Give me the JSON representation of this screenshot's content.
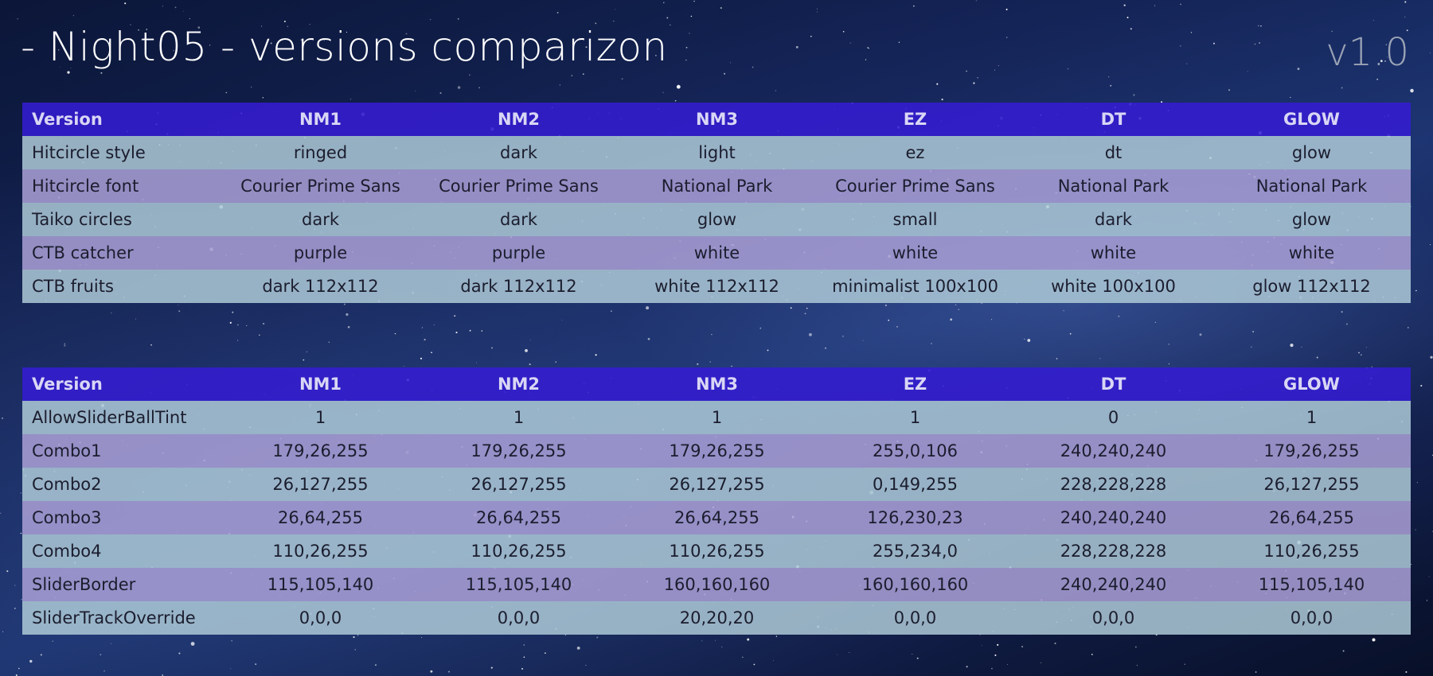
{
  "header": {
    "title": "- Night05 - versions comparizon",
    "version": "v1.0"
  },
  "tables": [
    {
      "columns": [
        "Version",
        "NM1",
        "NM2",
        "NM3",
        "EZ",
        "DT",
        "GLOW"
      ],
      "rows": [
        [
          "Hitcircle style",
          "ringed",
          "dark",
          "light",
          "ez",
          "dt",
          "glow"
        ],
        [
          "Hitcircle font",
          "Courier Prime Sans",
          "Courier Prime Sans",
          "National Park",
          "Courier Prime Sans",
          "National Park",
          "National Park"
        ],
        [
          "Taiko circles",
          "dark",
          "dark",
          "glow",
          "small",
          "dark",
          "glow"
        ],
        [
          "CTB catcher",
          "purple",
          "purple",
          "white",
          "white",
          "white",
          "white"
        ],
        [
          "CTB fruits",
          "dark 112x112",
          "dark 112x112",
          "white 112x112",
          "minimalist 100x100",
          "white 100x100",
          "glow 112x112"
        ]
      ]
    },
    {
      "columns": [
        "Version",
        "NM1",
        "NM2",
        "NM3",
        "EZ",
        "DT",
        "GLOW"
      ],
      "rows": [
        [
          "AllowSliderBallTint",
          "1",
          "1",
          "1",
          "1",
          "0",
          "1"
        ],
        [
          "Combo1",
          "179,26,255",
          "179,26,255",
          "179,26,255",
          "255,0,106",
          "240,240,240",
          "179,26,255"
        ],
        [
          "Combo2",
          "26,127,255",
          "26,127,255",
          "26,127,255",
          "0,149,255",
          "228,228,228",
          "26,127,255"
        ],
        [
          "Combo3",
          "26,64,255",
          "26,64,255",
          "26,64,255",
          "126,230,23",
          "240,240,240",
          "26,64,255"
        ],
        [
          "Combo4",
          "110,26,255",
          "110,26,255",
          "110,26,255",
          "255,234,0",
          "228,228,228",
          "110,26,255"
        ],
        [
          "SliderBorder",
          "115,105,140",
          "115,105,140",
          "160,160,160",
          "160,160,160",
          "240,240,240",
          "115,105,140"
        ],
        [
          "SliderTrackOverride",
          "0,0,0",
          "0,0,0",
          "20,20,20",
          "0,0,0",
          "0,0,0",
          "0,0,0"
        ]
      ]
    }
  ],
  "colors": {
    "header_row": "#341cd2",
    "row_light": "#acc8d6",
    "row_purple": "#aaa0d6",
    "background": "#142457"
  }
}
